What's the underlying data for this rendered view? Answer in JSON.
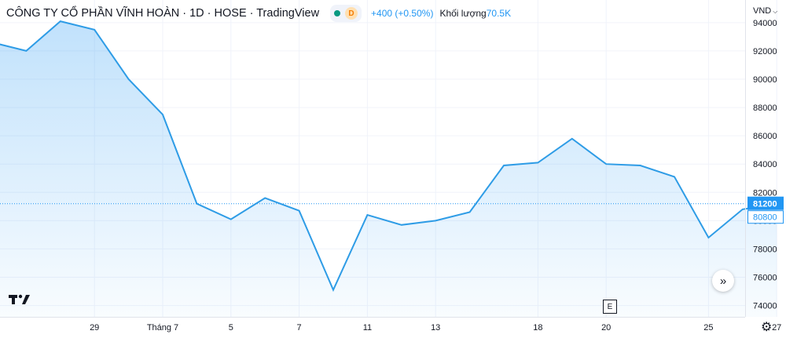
{
  "header": {
    "title": "CÔNG TY CỔ PHẦN VĨNH HOÀN · 1D · HOSE · TradingView",
    "market_badge": "D",
    "change": "+400 (+0.50%)",
    "volume_label": "Khối lượng",
    "volume_value": "70.5K"
  },
  "currency": "VND",
  "colors": {
    "line": "#2e9ce6",
    "area": "#2196f3",
    "current_price_bg": "#2196f3",
    "status_dot": "#089981"
  },
  "icons": [
    "tradingview-logo-icon",
    "scroll-to-realtime-icon",
    "earnings-event-icon",
    "settings-gear-icon"
  ],
  "event_marker": "E",
  "chart_data": {
    "type": "area",
    "x": [
      "2023-06-26",
      "2023-06-27",
      "2023-06-28",
      "2023-06-29",
      "2023-06-30",
      "2023-07-03",
      "2023-07-04",
      "2023-07-05",
      "2023-07-06",
      "2023-07-07",
      "2023-07-10",
      "2023-07-11",
      "2023-07-12",
      "2023-07-13",
      "2023-07-14",
      "2023-07-17",
      "2023-07-18",
      "2023-07-19",
      "2023-07-20",
      "2023-07-21",
      "2023-07-24",
      "2023-07-25",
      "2023-07-26",
      "2023-07-27"
    ],
    "values": [
      92600,
      92000,
      94100,
      93500,
      90000,
      87500,
      81200,
      80100,
      81600,
      80700,
      75100,
      80400,
      79700,
      80000,
      80600,
      83900,
      84100,
      85800,
      84000,
      83900,
      83100,
      78800,
      80800,
      81200
    ],
    "x_ticks": [
      {
        "date": "2023-06-29",
        "label": "29"
      },
      {
        "date": "2023-07-03",
        "label": "Tháng 7"
      },
      {
        "date": "2023-07-05",
        "label": "5"
      },
      {
        "date": "2023-07-07",
        "label": "7"
      },
      {
        "date": "2023-07-11",
        "label": "11"
      },
      {
        "date": "2023-07-13",
        "label": "13"
      },
      {
        "date": "2023-07-18",
        "label": "18"
      },
      {
        "date": "2023-07-20",
        "label": "20"
      },
      {
        "date": "2023-07-25",
        "label": "25"
      },
      {
        "date": "2023-07-27",
        "label": "27"
      }
    ],
    "y_ticks": [
      74000,
      76000,
      78000,
      80000,
      82000,
      84000,
      86000,
      88000,
      90000,
      92000,
      94000
    ],
    "y_tick_labels": [
      "74000",
      "76000",
      "78000",
      "80000",
      "82000",
      "84000",
      "86000",
      "88000",
      "90000",
      "92000",
      "94000"
    ],
    "ylim": [
      73200,
      95600
    ],
    "grid": true,
    "current_price": 81200,
    "current_price_label": "81200",
    "prev_close": 80800,
    "prev_close_label": "80800"
  }
}
